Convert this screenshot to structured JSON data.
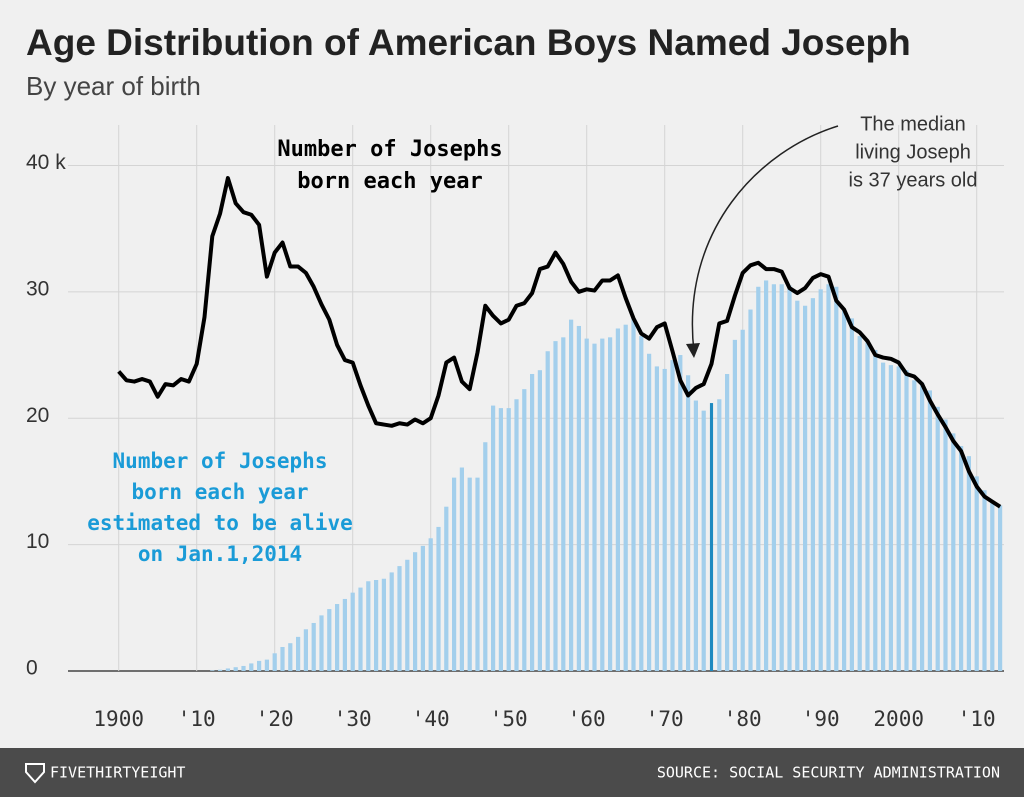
{
  "chart_data": {
    "type": "combo",
    "title": "Age Distribution of American Boys Named Joseph",
    "subtitle": "By year of birth",
    "x": [
      1900,
      1901,
      1902,
      1903,
      1904,
      1905,
      1906,
      1907,
      1908,
      1909,
      1910,
      1911,
      1912,
      1913,
      1914,
      1915,
      1916,
      1917,
      1918,
      1919,
      1920,
      1921,
      1922,
      1923,
      1924,
      1925,
      1926,
      1927,
      1928,
      1929,
      1930,
      1931,
      1932,
      1933,
      1934,
      1935,
      1936,
      1937,
      1938,
      1939,
      1940,
      1941,
      1942,
      1943,
      1944,
      1945,
      1946,
      1947,
      1948,
      1949,
      1950,
      1951,
      1952,
      1953,
      1954,
      1955,
      1956,
      1957,
      1958,
      1959,
      1960,
      1961,
      1962,
      1963,
      1964,
      1965,
      1966,
      1967,
      1968,
      1969,
      1970,
      1971,
      1972,
      1973,
      1974,
      1975,
      1976,
      1977,
      1978,
      1979,
      1980,
      1981,
      1982,
      1983,
      1984,
      1985,
      1986,
      1987,
      1988,
      1989,
      1990,
      1991,
      1992,
      1993,
      1994,
      1995,
      1996,
      1997,
      1998,
      1999,
      2000,
      2001,
      2002,
      2003,
      2004,
      2005,
      2006,
      2007,
      2008,
      2009,
      2010,
      2011,
      2012,
      2013
    ],
    "series": [
      {
        "type": "bar",
        "color": "#a3cfec",
        "highlight": {
          "x": 1976,
          "color": "#1f8ac0"
        },
        "values": [
          0,
          0,
          0,
          0,
          0,
          0,
          0,
          0,
          0,
          0,
          0,
          0,
          0.05,
          0.1,
          0.2,
          0.3,
          0.4,
          0.6,
          0.8,
          0.9,
          1.4,
          1.9,
          2.2,
          2.7,
          3.3,
          3.8,
          4.4,
          4.9,
          5.3,
          5.7,
          6.2,
          6.6,
          7.1,
          7.2,
          7.3,
          7.8,
          8.3,
          8.8,
          9.4,
          9.9,
          10.5,
          11.4,
          13.0,
          15.3,
          16.1,
          15.3,
          15.3,
          18.1,
          21.0,
          20.8,
          20.8,
          21.5,
          22.3,
          23.5,
          23.8,
          25.3,
          26.1,
          26.4,
          27.8,
          27.3,
          26.3,
          25.9,
          26.3,
          26.4,
          27.1,
          27.4,
          27.9,
          26.5,
          25.1,
          24.1,
          23.9,
          24.6,
          25.0,
          23.4,
          21.4,
          20.6,
          21.2,
          21.5,
          23.5,
          26.2,
          27.0,
          28.6,
          30.4,
          30.9,
          30.6,
          30.6,
          30.5,
          29.3,
          28.9,
          29.5,
          30.2,
          30.6,
          30.4,
          28.6,
          27.9,
          26.5,
          26.1,
          25.4,
          24.4,
          24.2,
          24.1,
          23.8,
          23.0,
          22.8,
          22.2,
          20.9,
          19.9,
          18.8,
          17.8,
          17.0,
          15.4,
          14.3,
          13.5,
          13.1
        ]
      },
      {
        "type": "line",
        "color": "#000000",
        "values": [
          23.7,
          23.0,
          22.9,
          23.1,
          22.9,
          21.7,
          22.7,
          22.6,
          23.1,
          22.9,
          24.3,
          28.0,
          34.4,
          36.2,
          39.0,
          37.0,
          36.3,
          36.1,
          35.3,
          31.2,
          33.1,
          33.9,
          32.0,
          32.0,
          31.5,
          30.4,
          29.0,
          27.8,
          25.8,
          24.6,
          24.4,
          22.6,
          21.0,
          19.6,
          19.5,
          19.4,
          19.6,
          19.5,
          19.9,
          19.6,
          20.0,
          21.8,
          24.4,
          24.8,
          22.9,
          22.3,
          25.2,
          28.9,
          28.1,
          27.5,
          27.8,
          28.9,
          29.1,
          29.9,
          31.8,
          32.0,
          33.1,
          32.2,
          30.8,
          30.0,
          30.2,
          30.1,
          30.9,
          30.9,
          31.3,
          29.5,
          27.9,
          26.7,
          26.3,
          27.2,
          27.5,
          25.3,
          23.0,
          21.8,
          22.4,
          22.7,
          24.3,
          27.5,
          27.7,
          29.7,
          31.5,
          32.1,
          32.3,
          31.8,
          31.8,
          31.6,
          30.3,
          29.9,
          30.3,
          31.1,
          31.4,
          31.2,
          29.3,
          28.6,
          27.2,
          26.8,
          26.1,
          25.0,
          24.8,
          24.7,
          24.4,
          23.5,
          23.3,
          22.7,
          21.4,
          20.3,
          19.3,
          18.2,
          17.4,
          15.8,
          14.6,
          13.8,
          13.4,
          13.0
        ]
      }
    ],
    "xlim": [
      1893.5,
      2013.5
    ],
    "xticks": [
      1900,
      {
        "value": 1910,
        "label": "'10"
      },
      {
        "value": 1920,
        "label": "'20"
      },
      {
        "value": 1930,
        "label": "'30"
      },
      {
        "value": 1940,
        "label": "'40"
      },
      {
        "value": 1950,
        "label": "'50"
      },
      {
        "value": 1960,
        "label": "'60"
      },
      {
        "value": 1970,
        "label": "'70"
      },
      {
        "value": 1980,
        "label": "'80"
      },
      {
        "value": 1990,
        "label": "'90"
      },
      2000,
      {
        "value": 2010,
        "label": "'10"
      }
    ],
    "ylim": [
      0,
      43.2
    ],
    "yticks": [
      0,
      10,
      20,
      30,
      {
        "value": 40,
        "label": "40 k"
      }
    ],
    "grid": true,
    "annotations": [
      {
        "lines": [
          "Number of Josephs",
          "born each year"
        ],
        "color": "#000000"
      },
      {
        "lines": [
          "Number of Josephs",
          "born each year",
          "estimated to be alive",
          "on Jan.1,2014"
        ],
        "color": "#1a9bd7"
      },
      {
        "lines": [
          "The median",
          "living Joseph",
          "is 37 years old"
        ],
        "color": "#333333"
      }
    ],
    "footer": {
      "brand": "FIVETHIRTYEIGHT",
      "source": "SOURCE: SOCIAL SECURITY ADMINISTRATION"
    }
  }
}
